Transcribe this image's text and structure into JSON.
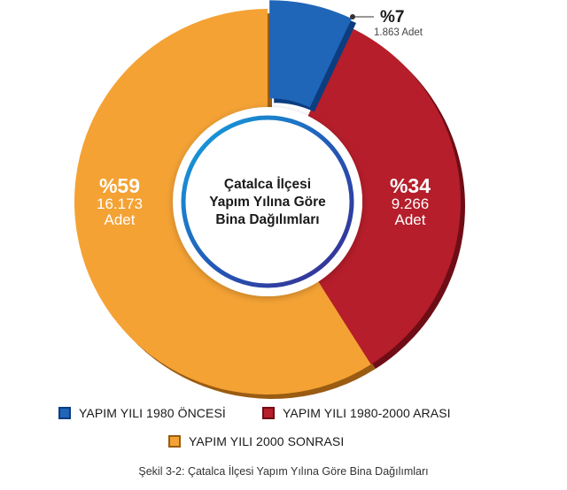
{
  "chart_data": {
    "type": "pie",
    "donut": true,
    "title": "Çatalca İlçesi Yapım Yılına Göre Bina Dağılımları",
    "title_lines": [
      "Çatalca İlçesi",
      "Yapım Yılına Göre",
      "Bina Dağılımları"
    ],
    "slices": [
      {
        "label": "YAPIM YILI 1980 ÖNCESİ",
        "percent": 7,
        "percent_label": "%7",
        "count_label": "1.863 Adet",
        "color": "#1f65b8",
        "edge": "#0b3d7f"
      },
      {
        "label": "YAPIM YILI 1980-2000 ARASI",
        "percent": 34,
        "percent_label": "%34",
        "count_label": "9.266 Adet",
        "count_number": "9.266",
        "unit": "Adet",
        "color": "#b51e2a",
        "edge": "#6e0d16"
      },
      {
        "label": "YAPIM YILI 2000 SONRASI",
        "percent": 59,
        "percent_label": "%59",
        "count_label": "16.173 Adet",
        "count_number": "16.173",
        "unit": "Adet",
        "color": "#f4a234",
        "edge": "#9a5c12"
      }
    ],
    "legend_position": "bottom"
  },
  "caption": "Şekil 3-2: Çatalca İlçesi Yapım Yılına Göre Bina Dağılımları"
}
